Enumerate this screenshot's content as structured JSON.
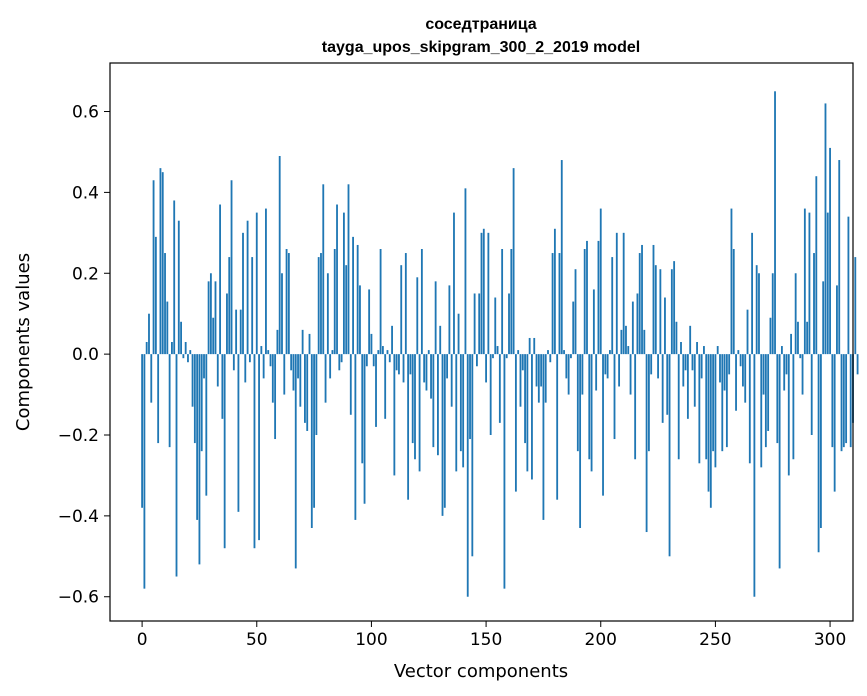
{
  "chart_data": {
    "type": "bar",
    "title": "соседтраница",
    "subtitle": "tayga_upos_skipgram_300_2_2019 model",
    "xlabel": "Vector components",
    "ylabel": "Components values",
    "xlim": [
      -14,
      310
    ],
    "ylim": [
      -0.66,
      0.72
    ],
    "xticks": [
      0,
      50,
      100,
      150,
      200,
      250,
      300
    ],
    "yticks": [
      -0.6,
      -0.4,
      -0.2,
      0.0,
      0.2,
      0.4,
      0.6
    ],
    "xtick_labels": [
      "0",
      "50",
      "100",
      "150",
      "200",
      "250",
      "300"
    ],
    "ytick_labels": [
      "−0.6",
      "−0.4",
      "−0.2",
      "0.0",
      "0.2",
      "0.4",
      "0.6"
    ],
    "grid": false,
    "bar_color": "#1f77b4",
    "values": [
      -0.38,
      -0.58,
      0.03,
      0.1,
      -0.12,
      0.43,
      0.29,
      -0.22,
      0.46,
      0.45,
      0.25,
      0.13,
      -0.23,
      0.03,
      0.38,
      -0.55,
      0.33,
      0.08,
      -0.01,
      0.03,
      -0.02,
      0.01,
      -0.13,
      -0.22,
      -0.41,
      -0.52,
      -0.24,
      -0.06,
      -0.35,
      0.18,
      0.2,
      0.09,
      0.18,
      -0.08,
      0.37,
      -0.16,
      -0.48,
      0.15,
      0.24,
      0.43,
      -0.04,
      0.11,
      -0.39,
      0.11,
      0.3,
      -0.07,
      0.33,
      -0.02,
      0.24,
      -0.48,
      0.35,
      -0.46,
      0.02,
      -0.06,
      0.36,
      0.01,
      -0.03,
      -0.12,
      -0.21,
      0.06,
      0.49,
      0.2,
      -0.1,
      0.26,
      0.25,
      -0.04,
      -0.09,
      -0.53,
      -0.06,
      -0.13,
      0.06,
      -0.17,
      -0.19,
      0.05,
      -0.43,
      -0.38,
      -0.2,
      0.24,
      0.25,
      0.42,
      -0.12,
      0.2,
      -0.06,
      0.01,
      0.26,
      0.37,
      -0.04,
      -0.02,
      0.35,
      0.22,
      0.42,
      -0.15,
      0.29,
      -0.41,
      0.27,
      0.17,
      -0.27,
      -0.37,
      -0.03,
      0.16,
      0.05,
      -0.03,
      -0.18,
      0.01,
      0.26,
      0.02,
      -0.16,
      0.01,
      -0.02,
      0.07,
      -0.3,
      -0.04,
      -0.05,
      0.22,
      -0.07,
      0.25,
      -0.36,
      -0.05,
      -0.22,
      -0.26,
      0.19,
      -0.29,
      0.26,
      -0.07,
      -0.09,
      0.01,
      -0.11,
      -0.23,
      0.18,
      -0.25,
      0.07,
      -0.4,
      -0.38,
      -0.06,
      0.17,
      -0.13,
      0.35,
      -0.29,
      0.1,
      -0.24,
      -0.28,
      0.41,
      -0.6,
      -0.21,
      -0.5,
      0.15,
      -0.03,
      0.15,
      0.3,
      0.31,
      -0.07,
      0.3,
      -0.2,
      -0.01,
      0.14,
      0.02,
      -0.17,
      0.26,
      -0.58,
      -0.01,
      0.15,
      0.26,
      0.46,
      -0.34,
      0.01,
      -0.13,
      -0.04,
      -0.22,
      -0.29,
      0.04,
      -0.31,
      0.04,
      -0.08,
      -0.12,
      -0.08,
      -0.41,
      -0.12,
      0.01,
      -0.02,
      0.25,
      0.31,
      -0.36,
      0.25,
      0.48,
      0.01,
      -0.06,
      -0.1,
      -0.01,
      0.13,
      0.21,
      -0.24,
      -0.43,
      -0.1,
      0.26,
      0.28,
      -0.26,
      -0.29,
      0.16,
      -0.09,
      0.28,
      0.36,
      -0.35,
      -0.05,
      -0.06,
      0.01,
      0.24,
      -0.21,
      0.3,
      -0.08,
      0.06,
      0.3,
      0.07,
      0.02,
      -0.1,
      0.13,
      -0.26,
      0.15,
      0.25,
      0.27,
      0.06,
      -0.44,
      -0.24,
      -0.05,
      0.27,
      0.22,
      -0.06,
      0.21,
      -0.17,
      0.14,
      -0.15,
      -0.5,
      0.21,
      0.23,
      0.08,
      -0.26,
      0.03,
      -0.08,
      -0.04,
      -0.16,
      0.07,
      -0.04,
      -0.13,
      0.03,
      -0.27,
      -0.06,
      0.02,
      -0.26,
      -0.34,
      -0.38,
      -0.24,
      -0.28,
      0.02,
      -0.07,
      -0.24,
      -0.09,
      -0.23,
      -0.05,
      0.36,
      0.26,
      -0.14,
      0.01,
      -0.03,
      -0.08,
      -0.12,
      0.11,
      -0.27,
      0.3,
      -0.6,
      0.22,
      0.2,
      -0.28,
      -0.1,
      -0.23,
      -0.19,
      0.09,
      0.2,
      0.65,
      -0.22,
      -0.53,
      0.02,
      -0.09,
      -0.05,
      -0.3,
      0.05,
      -0.26,
      0.2,
      0.08,
      -0.01,
      -0.1,
      0.36,
      0.08,
      0.35,
      -0.2,
      0.25,
      0.44,
      -0.49,
      -0.43,
      0.18,
      0.62,
      0.35,
      0.51,
      -0.23,
      -0.34,
      0.17,
      0.48,
      -0.24,
      -0.23,
      -0.22,
      0.34,
      -0.23,
      -0.17,
      0.24,
      -0.05
    ]
  }
}
